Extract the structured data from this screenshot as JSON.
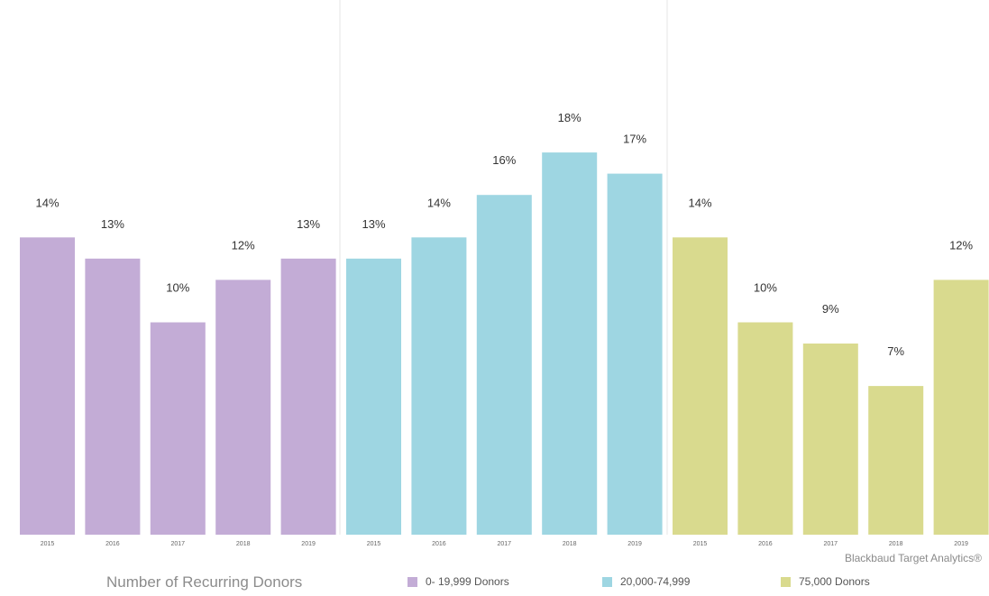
{
  "chart_data": {
    "type": "bar",
    "title": "",
    "xlabel": "Number of Recurring Donors",
    "ylabel": "",
    "ylim": [
      0,
      18
    ],
    "grid": false,
    "legend_placement": "bottom",
    "source": "Blackbaud Target Analytics®",
    "categories": [
      "2015",
      "2016",
      "2017",
      "2018",
      "2019"
    ],
    "series": [
      {
        "name": "0- 19,999 Donors",
        "color": "#c3acd6",
        "values": [
          14,
          13,
          10,
          12,
          13
        ],
        "labels": [
          "14%",
          "13%",
          "10%",
          "12%",
          "13%"
        ]
      },
      {
        "name": "20,000-74,999",
        "color": "#9ed6e2",
        "values": [
          13,
          14,
          16,
          18,
          17
        ],
        "labels": [
          "13%",
          "14%",
          "16%",
          "18%",
          "17%"
        ]
      },
      {
        "name": "75,000 Donors",
        "color": "#d9da8e",
        "values": [
          14,
          10,
          9,
          7,
          12
        ],
        "labels": [
          "14%",
          "10%",
          "9%",
          "7%",
          "12%"
        ]
      }
    ]
  }
}
